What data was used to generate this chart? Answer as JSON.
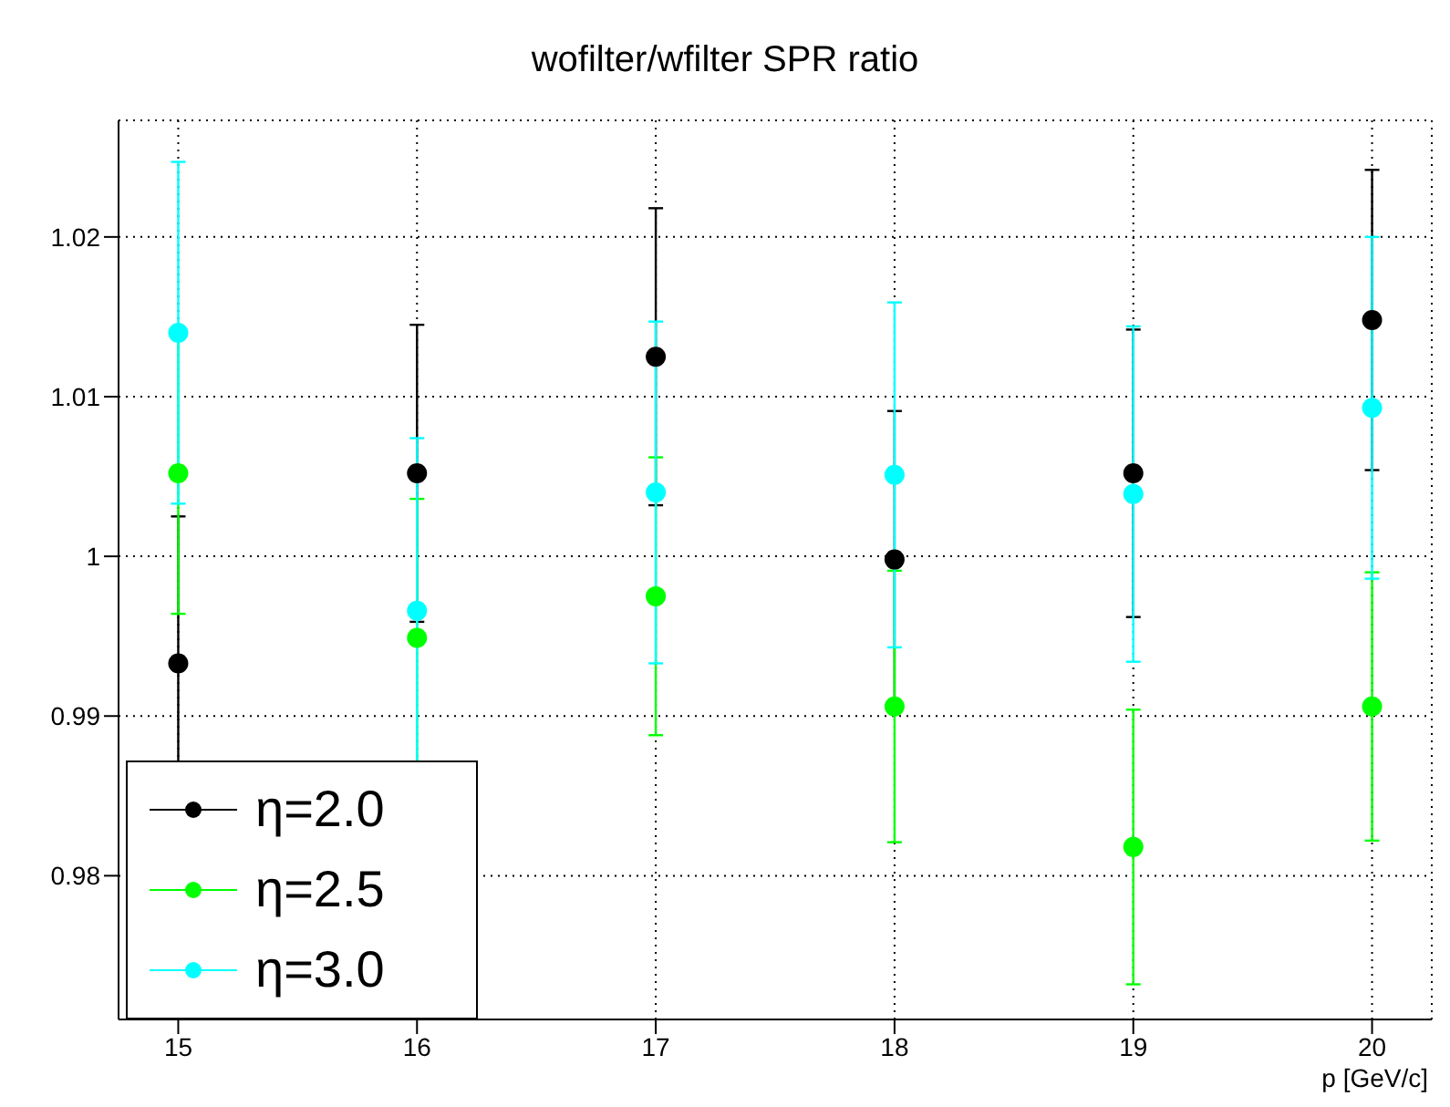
{
  "chart_data": {
    "type": "scatter",
    "title": "wofilter/wfilter SPR ratio",
    "xlabel": "p [GeV/c]",
    "x": [
      15,
      16,
      17,
      18,
      19,
      20
    ],
    "xlim": [
      14.75,
      20.25
    ],
    "xticks": [
      15,
      16,
      17,
      18,
      19,
      20
    ],
    "ylim": [
      0.971,
      1.0273
    ],
    "yticks": [
      0.98,
      0.99,
      1,
      1.01,
      1.02
    ],
    "grid": true,
    "legend": "bottom left",
    "marker": "circle",
    "series": [
      {
        "name": "η=2.0",
        "color": "#000000",
        "values": [
          0.9933,
          1.0052,
          1.0125,
          0.9998,
          1.0052,
          1.0148
        ],
        "errors": [
          0.0092,
          0.0093,
          0.0093,
          0.0093,
          0.009,
          0.0094
        ]
      },
      {
        "name": "η=2.5",
        "color": "#00ff00",
        "values": [
          1.0052,
          0.9949,
          0.9975,
          0.9906,
          0.9818,
          0.9906
        ],
        "errors": [
          0.0088,
          0.0087,
          0.0087,
          0.0085,
          0.0086,
          0.0084
        ]
      },
      {
        "name": "η=3.0",
        "color": "#00ffff",
        "values": [
          1.014,
          0.9966,
          1.004,
          1.0051,
          1.0039,
          1.0093
        ],
        "errors": [
          0.0107,
          0.0108,
          0.0107,
          0.0108,
          0.0105,
          0.0107
        ]
      }
    ]
  }
}
